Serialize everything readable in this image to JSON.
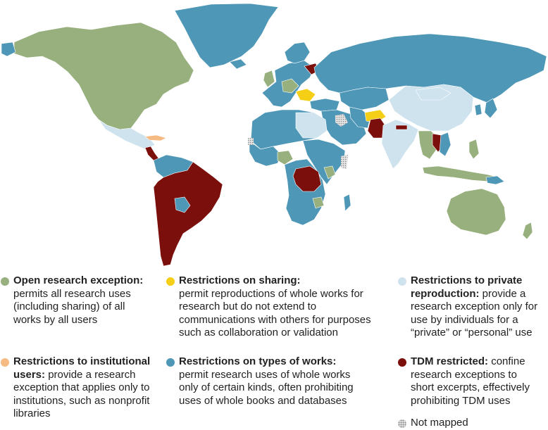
{
  "colors": {
    "open_research": "#97b07e",
    "sharing": "#f4cf16",
    "private": "#cfe3ee",
    "institutional": "#f6bb83",
    "works": "#4f97b7",
    "tdm": "#7b0f0c",
    "not_mapped": "#d6d6d6",
    "ocean": "#ffffff"
  },
  "legend": [
    {
      "key": "open_research",
      "title": "Open research exception:",
      "text": "permits all research uses (including sharing) of all works by all users"
    },
    {
      "key": "sharing",
      "title": "Restrictions on sharing:",
      "text": "permit reproductions of whole works for research but do not extend to communications with others for purposes such as collaboration or validation"
    },
    {
      "key": "private",
      "title": "Restrictions to private reproduction:",
      "text": "provide a research exception only for use by individuals for a “private” or “personal” use"
    },
    {
      "key": "institutional",
      "title": "Restrictions to institutional users:",
      "text": "provide a research exception that applies only to institutions, such as nonprofit libraries"
    },
    {
      "key": "works",
      "title": "Restrictions on types of works:",
      "text": "permit research uses of whole works only of certain kinds, often prohibiting uses of whole books and databases"
    },
    {
      "key": "tdm",
      "title": "TDM restricted:",
      "text": "confine research exceptions to short excerpts, effectively prohibiting TDM uses"
    },
    {
      "key": "not_mapped",
      "title": "",
      "text": "Not mapped"
    }
  ]
}
